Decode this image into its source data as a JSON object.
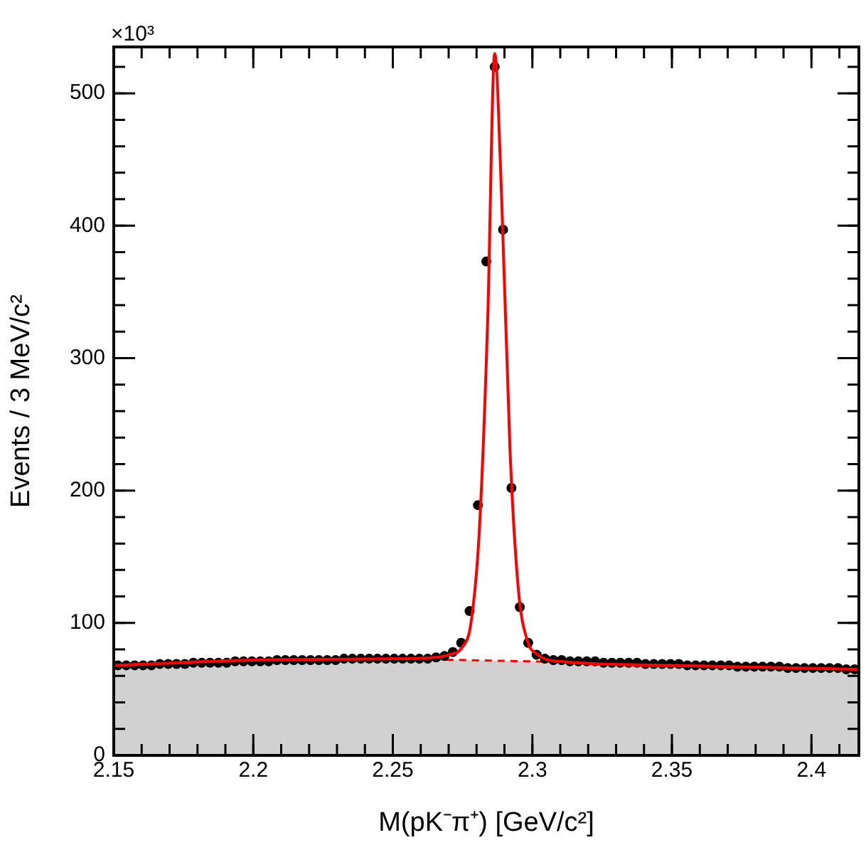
{
  "chart_data": {
    "type": "scatter",
    "xlabel": "M(pK⁻π⁺) [GeV/c²]",
    "ylabel": "Events / 3 MeV/c²",
    "annotations": [
      "×10³"
    ],
    "xlim": [
      2.15,
      2.417
    ],
    "ylim": [
      0,
      535
    ],
    "xticks": [
      2.15,
      2.2,
      2.25,
      2.3,
      2.35,
      2.4
    ],
    "yticks": [
      0,
      100,
      200,
      300,
      400,
      500
    ],
    "grid": false,
    "legend": false,
    "series": [
      {
        "type": "scatter",
        "color": "#000000",
        "marker": "circle",
        "x": [
          2.1515,
          2.1545,
          2.1575,
          2.1605,
          2.1635,
          2.1665,
          2.1695,
          2.1725,
          2.1755,
          2.1785,
          2.1815,
          2.1845,
          2.1875,
          2.1905,
          2.1935,
          2.1965,
          2.1995,
          2.2025,
          2.2055,
          2.2085,
          2.2115,
          2.2145,
          2.2175,
          2.2205,
          2.2235,
          2.2265,
          2.2295,
          2.2325,
          2.2355,
          2.2385,
          2.2415,
          2.2445,
          2.2475,
          2.2505,
          2.2535,
          2.2565,
          2.2595,
          2.2625,
          2.2655,
          2.2685,
          2.2715,
          2.2745,
          2.2775,
          2.2805,
          2.2835,
          2.2865,
          2.2895,
          2.2925,
          2.2955,
          2.2985,
          2.3015,
          2.3045,
          2.3075,
          2.3105,
          2.3135,
          2.3165,
          2.3195,
          2.3225,
          2.3255,
          2.3285,
          2.3315,
          2.3345,
          2.3375,
          2.3405,
          2.3435,
          2.3465,
          2.3495,
          2.3525,
          2.3555,
          2.3585,
          2.3615,
          2.3645,
          2.3675,
          2.3705,
          2.3735,
          2.3765,
          2.3795,
          2.3825,
          2.3855,
          2.3885,
          2.3915,
          2.3945,
          2.3975,
          2.4005,
          2.4035,
          2.4065,
          2.4095,
          2.4125,
          2.4155
        ],
        "values": [
          68,
          68,
          68,
          68,
          68,
          69,
          69,
          69,
          69,
          70,
          70,
          70,
          70,
          70,
          71,
          71,
          71,
          71,
          71,
          72,
          72,
          72,
          72,
          72,
          72,
          72,
          72,
          73,
          73,
          73,
          73,
          73,
          73,
          73,
          73,
          73,
          73,
          73,
          74,
          75,
          78,
          85,
          109,
          189,
          373,
          520,
          397,
          202,
          112,
          85,
          76,
          73,
          72,
          72,
          71,
          71,
          71,
          71,
          70,
          70,
          70,
          70,
          70,
          69,
          69,
          69,
          69,
          69,
          68,
          68,
          68,
          68,
          68,
          68,
          67,
          67,
          67,
          67,
          67,
          67,
          66,
          66,
          66,
          66,
          66,
          66,
          66,
          65,
          65
        ]
      },
      {
        "type": "line",
        "color": "#ff0000",
        "marker": "none",
        "line_style": "solid",
        "x": [
          2.15,
          2.2,
          2.25,
          2.265,
          2.27,
          2.275,
          2.278,
          2.281,
          2.284,
          2.2865,
          2.289,
          2.292,
          2.295,
          2.298,
          2.302,
          2.31,
          2.35,
          2.417
        ],
        "values": [
          68,
          72,
          73,
          74,
          76,
          82,
          100,
          170,
          330,
          530,
          420,
          230,
          125,
          88,
          76,
          71,
          68,
          65
        ]
      },
      {
        "type": "area",
        "color": "#ff0000",
        "marker": "none",
        "line_style": "dashed",
        "x": [
          2.15,
          2.2,
          2.25,
          2.3,
          2.35,
          2.417
        ],
        "values": [
          68,
          72,
          73,
          71,
          68,
          65
        ]
      }
    ]
  }
}
